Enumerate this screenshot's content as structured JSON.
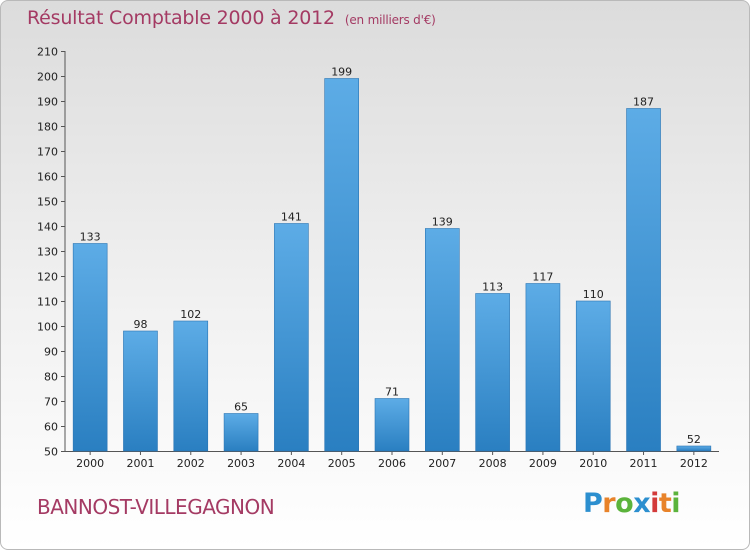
{
  "title": "Résultat Comptable 2000 à 2012",
  "subtitle": "(en milliers d'€)",
  "commune": "BANNOST-VILLEGAGNON",
  "logo": {
    "letters": [
      "P",
      "r",
      "o",
      "x",
      "i",
      "t",
      "i"
    ],
    "colors": [
      "#2c8fcf",
      "#e8832a",
      "#5bb33b",
      "#2c8fcf",
      "#d33a3a",
      "#e8832a",
      "#5bb33b"
    ]
  },
  "colors": {
    "bar_top": "#5dace6",
    "bar_bottom": "#2a7fc1",
    "title": "#a43a63"
  },
  "chart_data": {
    "type": "bar",
    "categories": [
      "2000",
      "2001",
      "2002",
      "2003",
      "2004",
      "2005",
      "2006",
      "2007",
      "2008",
      "2009",
      "2010",
      "2011",
      "2012"
    ],
    "values": [
      133,
      98,
      102,
      65,
      141,
      199,
      71,
      139,
      113,
      117,
      110,
      187,
      52
    ],
    "title": "Résultat Comptable 2000 à 2012",
    "xlabel": "",
    "ylabel": "",
    "ylim": [
      50,
      210
    ],
    "yticks": [
      50,
      60,
      70,
      80,
      90,
      100,
      110,
      120,
      130,
      140,
      150,
      160,
      170,
      180,
      190,
      200,
      210
    ],
    "grid": false,
    "legend": "none"
  }
}
